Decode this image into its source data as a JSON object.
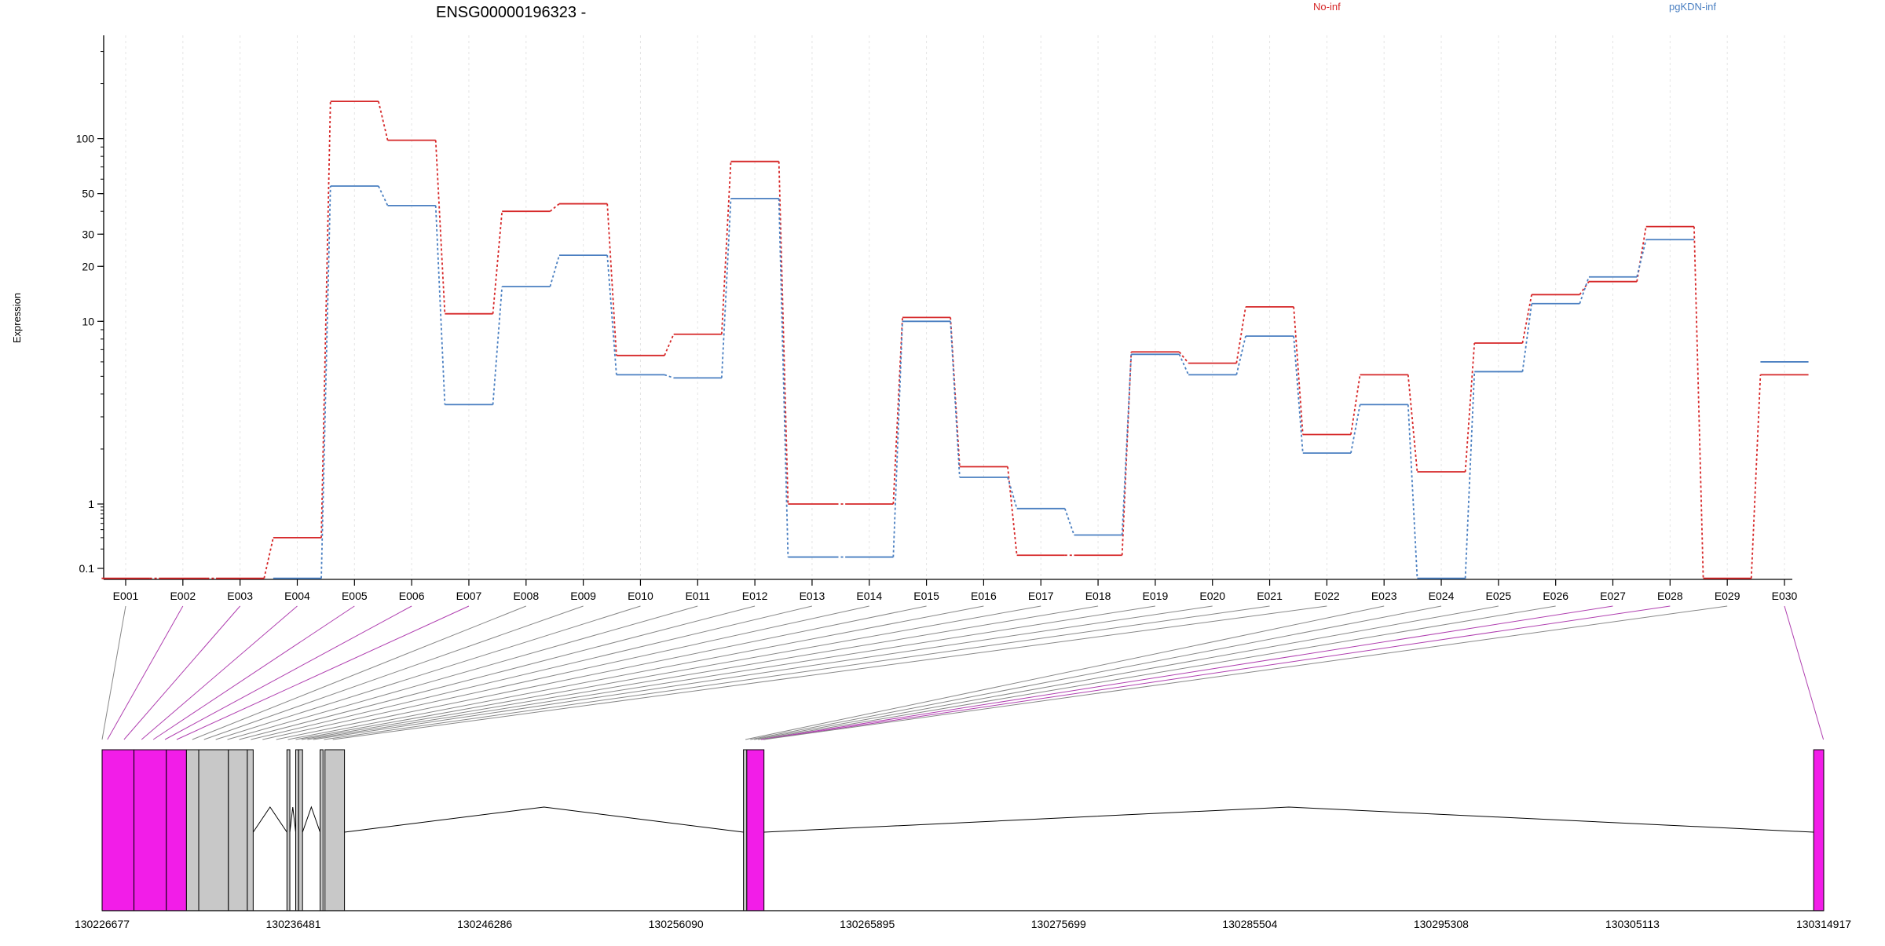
{
  "chart_data": {
    "type": "line",
    "title": "ENSG00000196323 -",
    "ylabel": "Expression",
    "xlabel": "",
    "y_scale": "log",
    "y_ticks": [
      {
        "value": 0.1,
        "label": "0.1"
      },
      {
        "value": 1,
        "label": "1"
      },
      {
        "value": 10,
        "label": "10"
      },
      {
        "value": 20,
        "label": "20"
      },
      {
        "value": 30,
        "label": "30"
      },
      {
        "value": 50,
        "label": "50"
      },
      {
        "value": 100,
        "label": "100"
      }
    ],
    "categories": [
      "E001",
      "E002",
      "E003",
      "E004",
      "E005",
      "E006",
      "E007",
      "E008",
      "E009",
      "E010",
      "E011",
      "E012",
      "E013",
      "E014",
      "E015",
      "E016",
      "E017",
      "E018",
      "E019",
      "E020",
      "E021",
      "E022",
      "E023",
      "E024",
      "E025",
      "E026",
      "E027",
      "E028",
      "E029",
      "E030"
    ],
    "series": [
      {
        "name": "No-inf",
        "color": "#d62728",
        "values": [
          0.07,
          0.07,
          0.07,
          0.3,
          160,
          98,
          11,
          40,
          44,
          6.5,
          8.5,
          75,
          1.0,
          1.0,
          10.5,
          1.6,
          0.16,
          0.16,
          6.8,
          5.9,
          12,
          2.4,
          5.1,
          1.5,
          7.6,
          14,
          16.5,
          33,
          0.07,
          5.1
        ]
      },
      {
        "name": "pgKDN-inf",
        "color": "#4a7fc1",
        "values": [
          null,
          null,
          null,
          0.07,
          55,
          43,
          3.5,
          15.5,
          23,
          5.1,
          4.9,
          47,
          0.15,
          0.15,
          10,
          1.4,
          0.85,
          0.33,
          6.6,
          5.1,
          8.3,
          1.9,
          3.5,
          0.07,
          5.3,
          12.5,
          17.5,
          28,
          null,
          6.0
        ]
      }
    ],
    "genome_axis": {
      "start": 130226677,
      "end": 130314917,
      "tick_labels": [
        "130226677",
        "130236481",
        "130246286",
        "130256090",
        "130265895",
        "130275699",
        "130285504",
        "130295308",
        "130305113",
        "130314917"
      ]
    },
    "exon_highlight_color": "#f21de8",
    "exon_default_color": "#c8c8c8"
  }
}
